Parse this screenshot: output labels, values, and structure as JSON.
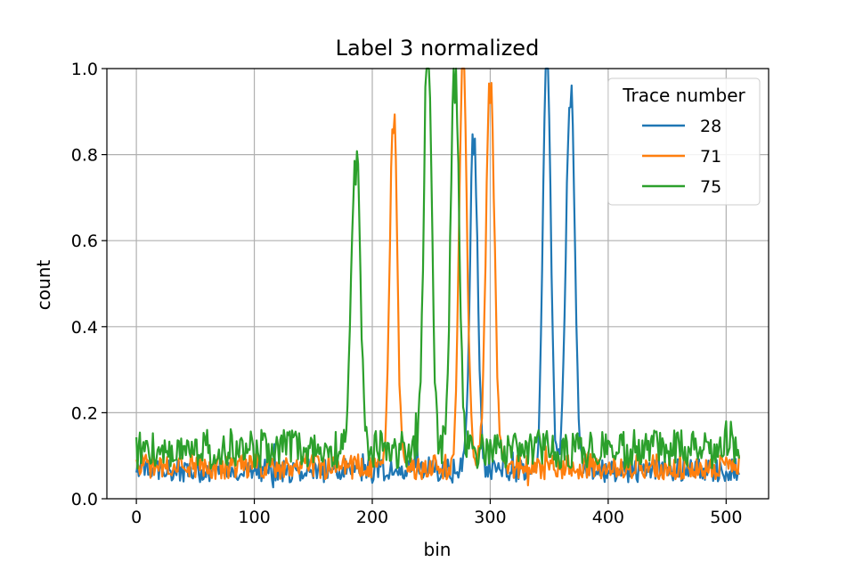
{
  "chart_data": {
    "type": "line",
    "title": "Label 3 normalized",
    "xlabel": "bin",
    "ylabel": "count",
    "xlim": [
      -25,
      536
    ],
    "ylim": [
      0,
      1.0
    ],
    "xticks": [
      0,
      100,
      200,
      300,
      400,
      500
    ],
    "yticks": [
      0.0,
      0.2,
      0.4,
      0.6,
      0.8,
      1.0
    ],
    "xtick_labels": [
      "0",
      "100",
      "200",
      "300",
      "400",
      "500"
    ],
    "ytick_labels": [
      "0.0",
      "0.2",
      "0.4",
      "0.6",
      "0.8",
      "1.0"
    ],
    "grid": true,
    "legend": {
      "title": "Trace number",
      "placement": "top-right"
    },
    "n_bins": 512,
    "series": [
      {
        "name": "28",
        "color": "#1f77b4",
        "baseline": 0.065,
        "noise": 0.028,
        "seed": 28,
        "peaks": [
          {
            "center": 286,
            "height": 0.8,
            "width": 3.2
          },
          {
            "center": 348,
            "height": 1.0,
            "width": 3.2
          },
          {
            "center": 368,
            "height": 0.91,
            "width": 3.6
          }
        ]
      },
      {
        "name": "71",
        "color": "#ff7f0e",
        "baseline": 0.075,
        "noise": 0.03,
        "seed": 71,
        "peaks": [
          {
            "center": 218,
            "height": 0.85,
            "width": 3.0
          },
          {
            "center": 277,
            "height": 1.0,
            "width": 3.2
          },
          {
            "center": 300,
            "height": 0.92,
            "width": 3.6
          }
        ]
      },
      {
        "name": "75",
        "color": "#2ca02c",
        "baseline": 0.115,
        "noise": 0.045,
        "seed": 75,
        "peaks": [
          {
            "center": 186,
            "height": 0.73,
            "width": 3.6
          },
          {
            "center": 247,
            "height": 1.0,
            "width": 3.2
          },
          {
            "center": 270,
            "height": 0.92,
            "width": 3.4
          }
        ]
      }
    ]
  }
}
